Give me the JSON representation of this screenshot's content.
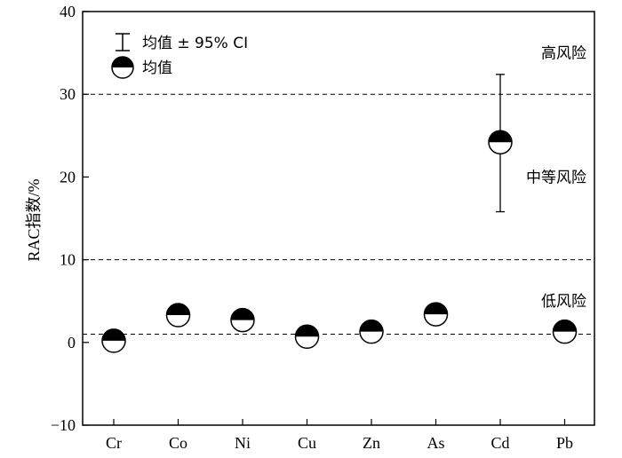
{
  "chart_data": {
    "type": "scatter",
    "categories": [
      "Cr",
      "Co",
      "Ni",
      "Cu",
      "Zn",
      "As",
      "Cd",
      "Pb"
    ],
    "series": [
      {
        "name": "均值",
        "values": [
          0.2,
          3.3,
          2.7,
          0.7,
          1.3,
          3.4,
          24.2,
          1.3
        ],
        "ci_low": [
          null,
          null,
          null,
          null,
          null,
          null,
          15.8,
          null
        ],
        "ci_high": [
          null,
          null,
          null,
          null,
          null,
          null,
          32.4,
          null
        ]
      }
    ],
    "ylabel": "RAC指数/%",
    "xlabel": "",
    "ylim": [
      -10,
      40
    ],
    "yticks": [
      "−10",
      "0",
      "10",
      "20",
      "30",
      "40"
    ],
    "ytick_values": [
      -10,
      0,
      10,
      20,
      30,
      40
    ],
    "thresholds": [
      1,
      10,
      30
    ],
    "zones": [
      {
        "label": "低风险",
        "y": 5
      },
      {
        "label": "中等风险",
        "y": 20
      },
      {
        "label": "高风险",
        "y": 35
      }
    ],
    "legend": {
      "position": "top-left",
      "items": [
        {
          "label": "均值 ± 95% CI",
          "symbol": "errorbar"
        },
        {
          "label": "均值",
          "symbol": "half-filled-circle"
        }
      ]
    },
    "grid": false,
    "colors": {
      "marker_fill": "#000000",
      "marker_face": "#ffffff",
      "line": "#000000"
    }
  }
}
